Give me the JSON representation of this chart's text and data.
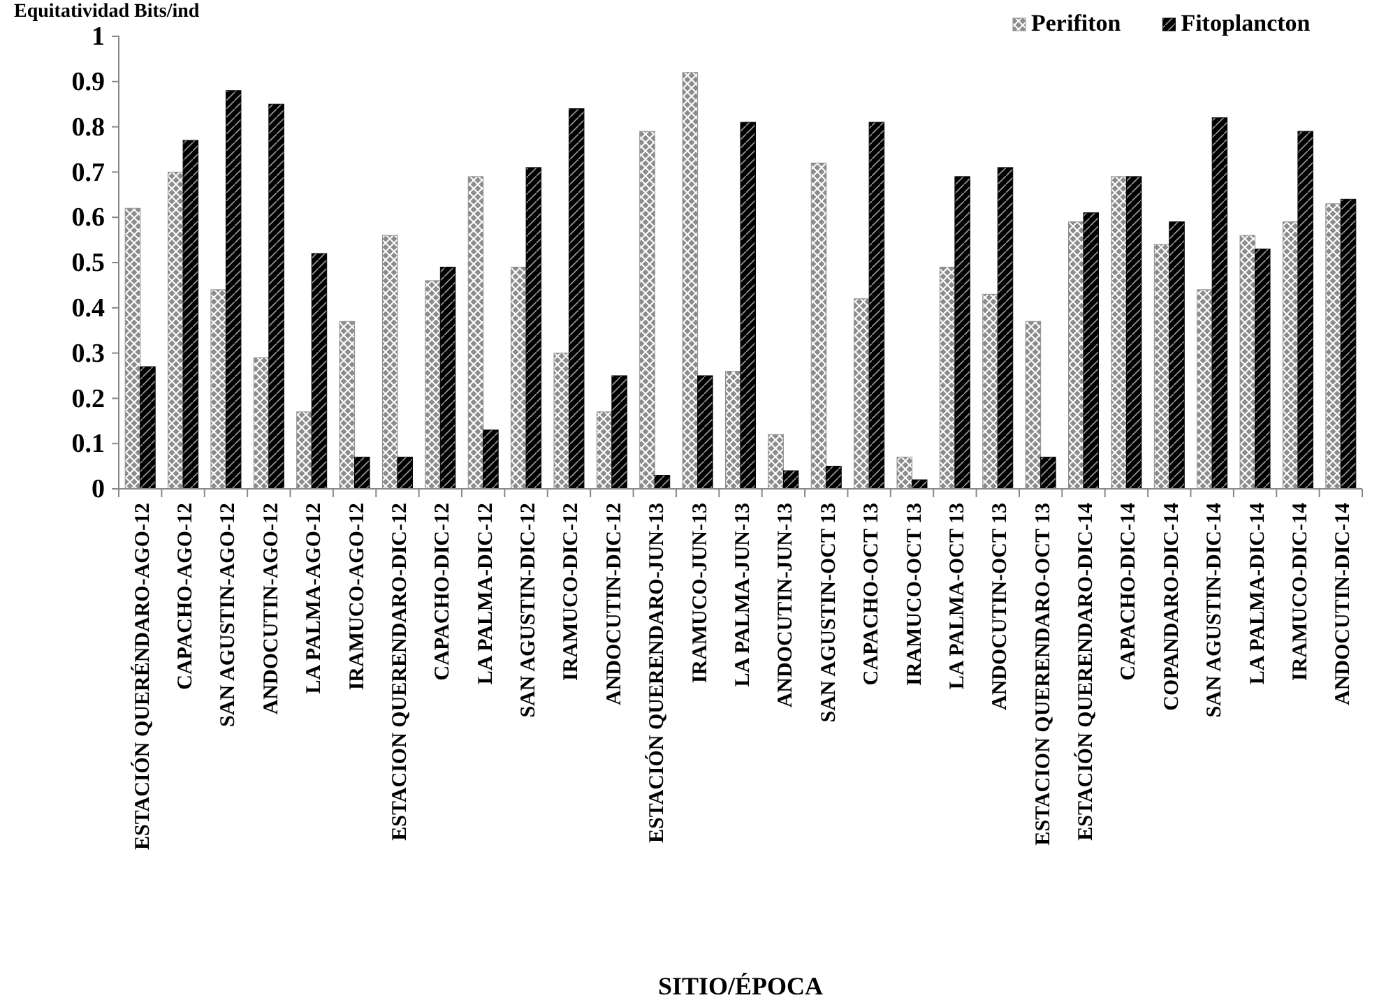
{
  "chart_data": {
    "type": "bar",
    "ylabel": "Equitatividad Bits/ind",
    "xlabel": "SITIO/ÉPOCA",
    "categories": [
      "ESTACIÓN QUERÉNDARO-AGO-12",
      "CAPACHO-AGO-12",
      "SAN AGUSTIN-AGO-12",
      "ANDOCUTIN-AGO-12",
      "LA PALMA-AGO-12",
      "IRAMUCO-AGO-12",
      "ESTACION QUERENDARO-DIC-12",
      "CAPACHO-DIC-12",
      "LA PALMA-DIC-12",
      "SAN AGUSTIN-DIC-12",
      "IRAMUCO-DIC-12",
      "ANDOCUTIN-DIC-12",
      "ESTACIÓN QUERENDARO-JUN-13",
      "IRAMUCO-JUN-13",
      "LA PALMA-JUN-13",
      "ANDOCUTIN-JUN-13",
      "SAN AGUSTIN-OCT 13",
      "CAPACHO-OCT 13",
      "IRAMUCO-OCT 13",
      "LA PALMA-OCT 13",
      "ANDOCUTIN-OCT 13",
      "ESTACION QUERENDARO-OCT 13",
      "ESTACIÓN QUERENDARO-DIC-14",
      "CAPACHO-DIC-14",
      "COPANDARO-DIC-14",
      "SAN AGUSTIN-DIC-14",
      "LA PALMA-DIC-14",
      "IRAMUCO-DIC-14",
      "ANDOCUTIN-DIC-14"
    ],
    "series": [
      {
        "name": "Perifiton",
        "color": "#8c8c8c",
        "values": [
          0.62,
          0.7,
          0.44,
          0.29,
          0.17,
          0.37,
          0.56,
          0.46,
          0.69,
          0.49,
          0.3,
          0.17,
          0.79,
          0.92,
          0.26,
          0.12,
          0.72,
          0.42,
          0.07,
          0.49,
          0.43,
          0.37,
          0.59,
          0.69,
          0.54,
          0.44,
          0.56,
          0.59,
          0.63
        ]
      },
      {
        "name": "Fitoplancton",
        "color": "#000000",
        "values": [
          0.27,
          0.77,
          0.88,
          0.85,
          0.52,
          0.07,
          0.07,
          0.49,
          0.13,
          0.71,
          0.84,
          0.25,
          0.03,
          0.25,
          0.81,
          0.04,
          0.05,
          0.81,
          0.02,
          0.69,
          0.71,
          0.07,
          0.61,
          0.69,
          0.59,
          0.82,
          0.53,
          0.79,
          0.64
        ]
      }
    ],
    "ylim": [
      0,
      1
    ],
    "yticks": [
      0,
      0.1,
      0.2,
      0.3,
      0.4,
      0.5,
      0.6,
      0.7,
      0.8,
      0.9,
      1
    ],
    "legend": "top right"
  }
}
